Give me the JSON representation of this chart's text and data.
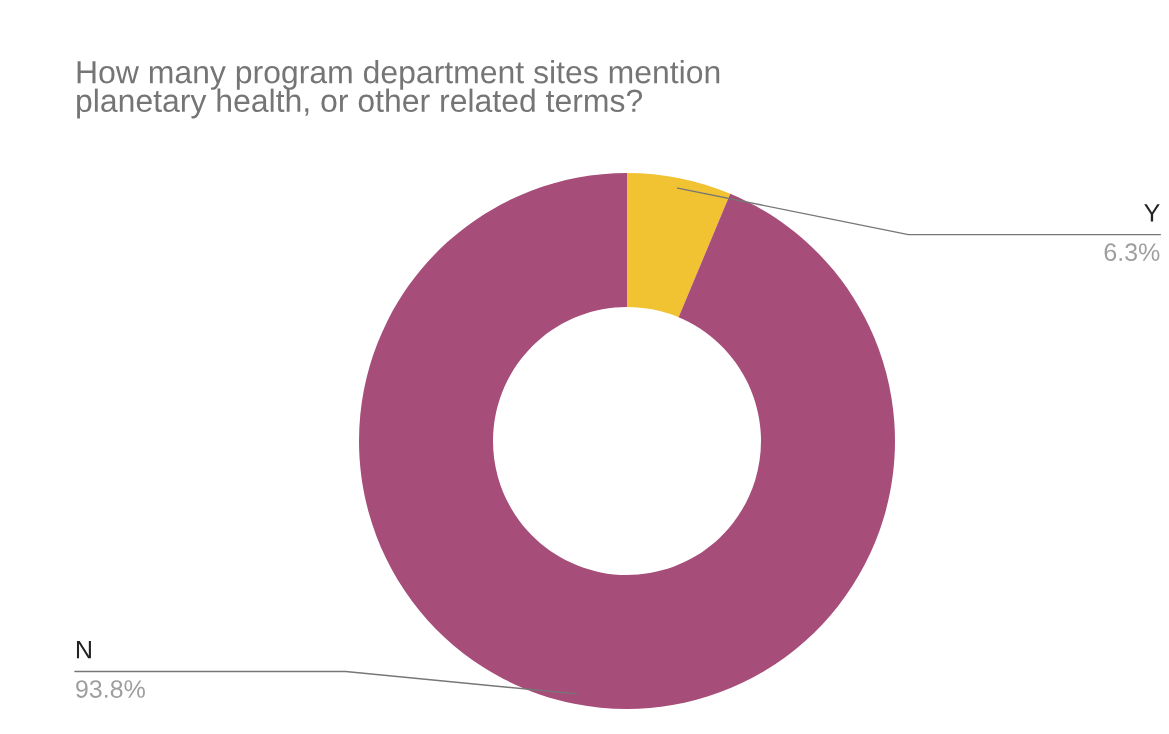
{
  "chart_data": {
    "type": "donut",
    "title": "How many program department sites mention\nplanetary health, or other related terms?",
    "categories": [
      "Y",
      "N"
    ],
    "values": [
      6.3,
      93.8
    ],
    "colors": [
      "#f1c232",
      "#a64d79"
    ],
    "value_labels": [
      "6.3%",
      "93.8%"
    ],
    "legend": false
  }
}
